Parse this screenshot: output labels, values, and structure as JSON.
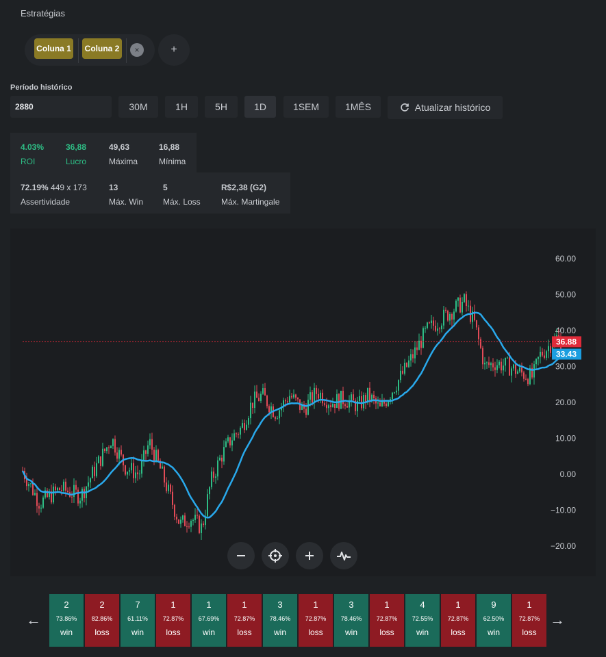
{
  "section_title": "Estratégias",
  "chips": [
    {
      "label": "Coluna 1"
    },
    {
      "label": "Coluna 2"
    }
  ],
  "chip_close": "×",
  "chip_add": "+",
  "period": {
    "label": "Período histórico",
    "value": "2880"
  },
  "ranges": [
    "30M",
    "1H",
    "5H",
    "1D",
    "1SEM",
    "1MÊS"
  ],
  "active_range": "1D",
  "refresh_label": "Atualizar histórico",
  "stats": {
    "roi": {
      "value": "4.03%",
      "label": "ROI"
    },
    "lucro": {
      "value": "36,88",
      "label": "Lucro"
    },
    "maxima": {
      "value": "49,63",
      "label": "Máxima"
    },
    "minima": {
      "value": "16,88",
      "label": "Mínima"
    },
    "assertividade": {
      "value": "72.19%",
      "extra": "449 x 173",
      "label": "Assertividade"
    },
    "max_win": {
      "value": "13",
      "label": "Máx. Win"
    },
    "max_loss": {
      "value": "5",
      "label": "Máx. Loss"
    },
    "max_martingale": {
      "value": "R$2,38 (G2)",
      "label": "Máx. Martingale"
    }
  },
  "chart_data": {
    "type": "line",
    "y_ticks": [
      "60.00",
      "50.00",
      "40.00",
      "30.00",
      "20.00",
      "10.00",
      "0.00",
      "−10.00",
      "−20.00"
    ],
    "ylim": [
      -20,
      60
    ],
    "price_label": "36.88",
    "ma_label": "33.43",
    "current_price": 36.88,
    "current_ma": 33.43,
    "colors": {
      "up": "#2ebd85",
      "down": "#e24b57",
      "ma": "#29a9ec",
      "price_line": "#e02b3a",
      "ma_tag": "#1b9ee0"
    }
  },
  "results": [
    {
      "n": "2",
      "p": "73.86%",
      "o": "win"
    },
    {
      "n": "2",
      "p": "82.86%",
      "o": "loss"
    },
    {
      "n": "7",
      "p": "61.11%",
      "o": "win"
    },
    {
      "n": "1",
      "p": "72.87%",
      "o": "loss"
    },
    {
      "n": "1",
      "p": "67.69%",
      "o": "win"
    },
    {
      "n": "1",
      "p": "72.87%",
      "o": "loss"
    },
    {
      "n": "3",
      "p": "78.46%",
      "o": "win"
    },
    {
      "n": "1",
      "p": "72.87%",
      "o": "loss"
    },
    {
      "n": "3",
      "p": "78.46%",
      "o": "win"
    },
    {
      "n": "1",
      "p": "72.87%",
      "o": "loss"
    },
    {
      "n": "4",
      "p": "72.55%",
      "o": "win"
    },
    {
      "n": "1",
      "p": "72.87%",
      "o": "loss"
    },
    {
      "n": "9",
      "p": "62.50%",
      "o": "win"
    },
    {
      "n": "1",
      "p": "72.87%",
      "o": "loss"
    }
  ]
}
